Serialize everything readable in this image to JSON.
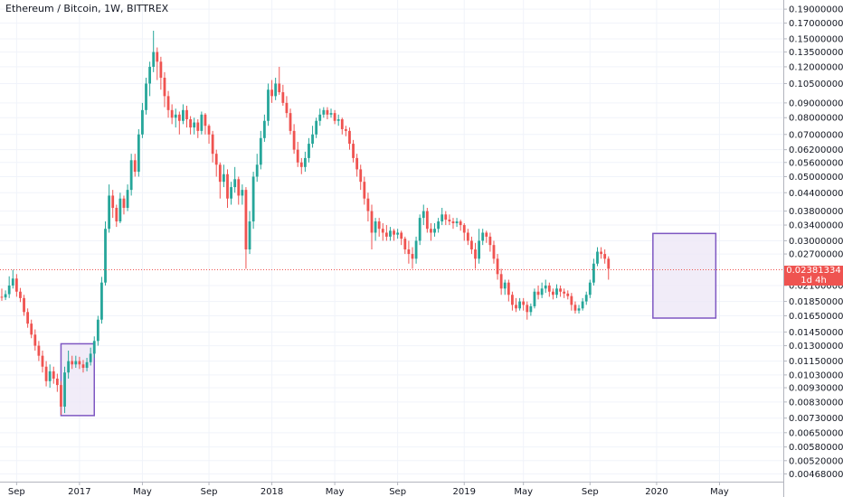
{
  "header": {
    "title": "Ethereum / Bitcoin, 1W, BITTREX"
  },
  "price_badge": {
    "value": "0.02381334",
    "countdown": "1d 4h"
  },
  "colors": {
    "up": "#26a69a",
    "down": "#ef5350",
    "box_stroke": "#7e57c2",
    "box_fill": "#ede7f6",
    "last_price": "#ef5350"
  },
  "chart_data": {
    "type": "candlestick",
    "scale": "log",
    "ylim": [
      0.0044,
      0.2
    ],
    "yticks": [
      "0.19000000",
      "0.17000000",
      "0.15000000",
      "0.13500000",
      "0.12000000",
      "0.10500000",
      "0.09000000",
      "0.08000000",
      "0.07000000",
      "0.06200000",
      "0.05600000",
      "0.05000000",
      "0.04400000",
      "0.03800000",
      "0.03400000",
      "0.03000000",
      "0.02700000",
      "0.02100000",
      "0.01850000",
      "0.01650000",
      "0.01450000",
      "0.01300000",
      "0.01150000",
      "0.01030000",
      "0.00930000",
      "0.00830000",
      "0.00730000",
      "0.00650000",
      "0.00580000",
      "0.00520000",
      "0.00468000"
    ],
    "xticks": [
      "Sep",
      "2017",
      "May",
      "Sep",
      "2018",
      "May",
      "Sep",
      "2019",
      "May",
      "Sep",
      "2020",
      "May"
    ],
    "xtick_weeks": [
      4,
      21,
      38,
      56,
      73,
      90,
      107,
      125,
      141,
      159,
      177,
      194
    ],
    "last_price": 0.02381334,
    "highlight_boxes": [
      {
        "week_start": 16,
        "week_end": 25,
        "low": 0.00745,
        "high": 0.0132
      },
      {
        "week_start": 176,
        "week_end": 193,
        "low": 0.0162,
        "high": 0.0318
      }
    ],
    "candles": [
      [
        0.0192,
        0.0191,
        0.0205,
        0.0186
      ],
      [
        0.0191,
        0.0196,
        0.0202,
        0.0187
      ],
      [
        0.0196,
        0.021,
        0.0226,
        0.019
      ],
      [
        0.021,
        0.0222,
        0.0238,
        0.0205
      ],
      [
        0.0222,
        0.02,
        0.023,
        0.0192
      ],
      [
        0.02,
        0.019,
        0.0206,
        0.0184
      ],
      [
        0.019,
        0.017,
        0.0195,
        0.0165
      ],
      [
        0.017,
        0.0155,
        0.0175,
        0.015
      ],
      [
        0.0155,
        0.0142,
        0.016,
        0.0138
      ],
      [
        0.0142,
        0.013,
        0.0148,
        0.0125
      ],
      [
        0.013,
        0.012,
        0.0135,
        0.0115
      ],
      [
        0.012,
        0.011,
        0.0125,
        0.0105
      ],
      [
        0.011,
        0.0098,
        0.0115,
        0.0094
      ],
      [
        0.0098,
        0.0106,
        0.0112,
        0.0093
      ],
      [
        0.0106,
        0.01,
        0.011,
        0.0096
      ],
      [
        0.01,
        0.0095,
        0.0104,
        0.009
      ],
      [
        0.0095,
        0.008,
        0.0098,
        0.0075
      ],
      [
        0.008,
        0.0105,
        0.011,
        0.0076
      ],
      [
        0.0105,
        0.0115,
        0.0125,
        0.01
      ],
      [
        0.0115,
        0.0112,
        0.012,
        0.0108
      ],
      [
        0.0112,
        0.0115,
        0.012,
        0.0109
      ],
      [
        0.0115,
        0.0112,
        0.0119,
        0.0108
      ],
      [
        0.0112,
        0.0109,
        0.0116,
        0.0105
      ],
      [
        0.0109,
        0.0114,
        0.0118,
        0.0106
      ],
      [
        0.0114,
        0.0122,
        0.0128,
        0.0111
      ],
      [
        0.0122,
        0.0135,
        0.014,
        0.0118
      ],
      [
        0.0135,
        0.016,
        0.0165,
        0.013
      ],
      [
        0.016,
        0.0215,
        0.0225,
        0.0155
      ],
      [
        0.0215,
        0.033,
        0.035,
        0.021
      ],
      [
        0.033,
        0.043,
        0.047,
        0.032
      ],
      [
        0.043,
        0.039,
        0.045,
        0.036
      ],
      [
        0.039,
        0.035,
        0.04,
        0.0335
      ],
      [
        0.035,
        0.042,
        0.044,
        0.0345
      ],
      [
        0.042,
        0.039,
        0.043,
        0.037
      ],
      [
        0.039,
        0.045,
        0.047,
        0.038
      ],
      [
        0.045,
        0.057,
        0.06,
        0.043
      ],
      [
        0.057,
        0.052,
        0.06,
        0.05
      ],
      [
        0.052,
        0.07,
        0.073,
        0.05
      ],
      [
        0.07,
        0.085,
        0.09,
        0.068
      ],
      [
        0.085,
        0.105,
        0.11,
        0.082
      ],
      [
        0.105,
        0.12,
        0.125,
        0.095
      ],
      [
        0.12,
        0.135,
        0.16,
        0.115
      ],
      [
        0.135,
        0.125,
        0.14,
        0.108
      ],
      [
        0.125,
        0.11,
        0.13,
        0.1
      ],
      [
        0.11,
        0.095,
        0.115,
        0.087
      ],
      [
        0.095,
        0.085,
        0.099,
        0.08
      ],
      [
        0.085,
        0.08,
        0.089,
        0.076
      ],
      [
        0.08,
        0.082,
        0.086,
        0.074
      ],
      [
        0.082,
        0.078,
        0.084,
        0.07
      ],
      [
        0.078,
        0.085,
        0.089,
        0.076
      ],
      [
        0.085,
        0.079,
        0.088,
        0.074
      ],
      [
        0.079,
        0.074,
        0.081,
        0.07
      ],
      [
        0.074,
        0.077,
        0.08,
        0.07
      ],
      [
        0.077,
        0.072,
        0.079,
        0.068
      ],
      [
        0.072,
        0.082,
        0.084,
        0.07
      ],
      [
        0.082,
        0.075,
        0.083,
        0.07
      ],
      [
        0.075,
        0.07,
        0.076,
        0.065
      ],
      [
        0.07,
        0.06,
        0.072,
        0.056
      ],
      [
        0.06,
        0.055,
        0.062,
        0.05
      ],
      [
        0.055,
        0.048,
        0.056,
        0.042
      ],
      [
        0.048,
        0.051,
        0.055,
        0.046
      ],
      [
        0.051,
        0.042,
        0.053,
        0.039
      ],
      [
        0.042,
        0.046,
        0.048,
        0.04
      ],
      [
        0.046,
        0.049,
        0.054,
        0.044
      ],
      [
        0.049,
        0.043,
        0.05,
        0.04
      ],
      [
        0.043,
        0.045,
        0.047,
        0.04
      ],
      [
        0.045,
        0.028,
        0.046,
        0.024
      ],
      [
        0.028,
        0.035,
        0.038,
        0.027
      ],
      [
        0.035,
        0.05,
        0.052,
        0.033
      ],
      [
        0.05,
        0.055,
        0.06,
        0.048
      ],
      [
        0.055,
        0.068,
        0.072,
        0.053
      ],
      [
        0.068,
        0.078,
        0.082,
        0.066
      ],
      [
        0.078,
        0.1,
        0.105,
        0.075
      ],
      [
        0.1,
        0.095,
        0.108,
        0.09
      ],
      [
        0.095,
        0.105,
        0.11,
        0.092
      ],
      [
        0.105,
        0.098,
        0.12,
        0.096
      ],
      [
        0.098,
        0.09,
        0.104,
        0.088
      ],
      [
        0.09,
        0.083,
        0.095,
        0.08
      ],
      [
        0.083,
        0.072,
        0.086,
        0.07
      ],
      [
        0.072,
        0.062,
        0.076,
        0.06
      ],
      [
        0.062,
        0.056,
        0.066,
        0.054
      ],
      [
        0.056,
        0.054,
        0.058,
        0.051
      ],
      [
        0.054,
        0.058,
        0.061,
        0.052
      ],
      [
        0.058,
        0.065,
        0.068,
        0.056
      ],
      [
        0.065,
        0.07,
        0.075,
        0.063
      ],
      [
        0.07,
        0.078,
        0.08,
        0.068
      ],
      [
        0.078,
        0.082,
        0.086,
        0.075
      ],
      [
        0.082,
        0.085,
        0.087,
        0.08
      ],
      [
        0.085,
        0.082,
        0.087,
        0.079
      ],
      [
        0.082,
        0.083,
        0.086,
        0.08
      ],
      [
        0.083,
        0.078,
        0.085,
        0.076
      ],
      [
        0.078,
        0.079,
        0.082,
        0.075
      ],
      [
        0.079,
        0.073,
        0.08,
        0.07
      ],
      [
        0.073,
        0.072,
        0.075,
        0.069
      ],
      [
        0.072,
        0.065,
        0.074,
        0.062
      ],
      [
        0.065,
        0.058,
        0.067,
        0.056
      ],
      [
        0.058,
        0.053,
        0.06,
        0.05
      ],
      [
        0.053,
        0.048,
        0.055,
        0.045
      ],
      [
        0.048,
        0.042,
        0.05,
        0.04
      ],
      [
        0.042,
        0.038,
        0.044,
        0.035
      ],
      [
        0.038,
        0.032,
        0.04,
        0.028
      ],
      [
        0.032,
        0.035,
        0.036,
        0.03
      ],
      [
        0.035,
        0.033,
        0.036,
        0.031
      ],
      [
        0.033,
        0.032,
        0.0345,
        0.03
      ],
      [
        0.032,
        0.031,
        0.034,
        0.03
      ],
      [
        0.031,
        0.0325,
        0.0335,
        0.03
      ],
      [
        0.0325,
        0.0315,
        0.033,
        0.03
      ],
      [
        0.0315,
        0.032,
        0.033,
        0.0305
      ],
      [
        0.032,
        0.0305,
        0.0325,
        0.029
      ],
      [
        0.0305,
        0.028,
        0.031,
        0.027
      ],
      [
        0.028,
        0.027,
        0.03,
        0.025
      ],
      [
        0.027,
        0.026,
        0.0285,
        0.024
      ],
      [
        0.026,
        0.03,
        0.031,
        0.025
      ],
      [
        0.03,
        0.036,
        0.037,
        0.029
      ],
      [
        0.036,
        0.038,
        0.04,
        0.034
      ],
      [
        0.038,
        0.033,
        0.039,
        0.032
      ],
      [
        0.033,
        0.032,
        0.0345,
        0.03
      ],
      [
        0.032,
        0.033,
        0.0345,
        0.031
      ],
      [
        0.033,
        0.035,
        0.036,
        0.032
      ],
      [
        0.035,
        0.037,
        0.039,
        0.034
      ],
      [
        0.037,
        0.0355,
        0.038,
        0.034
      ],
      [
        0.0355,
        0.035,
        0.037,
        0.034
      ],
      [
        0.035,
        0.0345,
        0.036,
        0.033
      ],
      [
        0.0345,
        0.035,
        0.036,
        0.0335
      ],
      [
        0.035,
        0.034,
        0.0355,
        0.0325
      ],
      [
        0.034,
        0.032,
        0.0345,
        0.03
      ],
      [
        0.032,
        0.03,
        0.033,
        0.029
      ],
      [
        0.03,
        0.028,
        0.031,
        0.027
      ],
      [
        0.028,
        0.026,
        0.0295,
        0.024
      ],
      [
        0.026,
        0.03,
        0.033,
        0.025
      ],
      [
        0.03,
        0.032,
        0.033,
        0.029
      ],
      [
        0.032,
        0.031,
        0.0325,
        0.0295
      ],
      [
        0.031,
        0.029,
        0.032,
        0.0275
      ],
      [
        0.029,
        0.026,
        0.03,
        0.025
      ],
      [
        0.026,
        0.023,
        0.027,
        0.022
      ],
      [
        0.023,
        0.0205,
        0.024,
        0.0195
      ],
      [
        0.0205,
        0.0215,
        0.022,
        0.0195
      ],
      [
        0.0215,
        0.0195,
        0.022,
        0.0185
      ],
      [
        0.0195,
        0.018,
        0.02,
        0.0172
      ],
      [
        0.018,
        0.0175,
        0.019,
        0.017
      ],
      [
        0.0175,
        0.0185,
        0.019,
        0.0172
      ],
      [
        0.0185,
        0.018,
        0.019,
        0.0172
      ],
      [
        0.018,
        0.017,
        0.0185,
        0.016
      ],
      [
        0.017,
        0.0178,
        0.0182,
        0.0165
      ],
      [
        0.0178,
        0.02,
        0.0205,
        0.0175
      ],
      [
        0.02,
        0.0195,
        0.021,
        0.0188
      ],
      [
        0.0195,
        0.0205,
        0.0215,
        0.019
      ],
      [
        0.0205,
        0.021,
        0.022,
        0.0198
      ],
      [
        0.021,
        0.02,
        0.0215,
        0.0192
      ],
      [
        0.02,
        0.0195,
        0.0205,
        0.0188
      ],
      [
        0.0195,
        0.0205,
        0.0212,
        0.019
      ],
      [
        0.0205,
        0.02,
        0.021,
        0.0192
      ],
      [
        0.02,
        0.0197,
        0.0205,
        0.019
      ],
      [
        0.0197,
        0.0193,
        0.0202,
        0.0188
      ],
      [
        0.0193,
        0.018,
        0.0198,
        0.0172
      ],
      [
        0.018,
        0.0172,
        0.0185,
        0.0168
      ],
      [
        0.0172,
        0.0175,
        0.018,
        0.0168
      ],
      [
        0.0175,
        0.0185,
        0.019,
        0.0172
      ],
      [
        0.0185,
        0.0195,
        0.02,
        0.018
      ],
      [
        0.0195,
        0.0215,
        0.022,
        0.019
      ],
      [
        0.0215,
        0.025,
        0.026,
        0.021
      ],
      [
        0.025,
        0.0275,
        0.0285,
        0.0245
      ],
      [
        0.0275,
        0.027,
        0.0285,
        0.026
      ],
      [
        0.027,
        0.026,
        0.028,
        0.025
      ],
      [
        0.026,
        0.024,
        0.0265,
        0.022
      ]
    ]
  }
}
